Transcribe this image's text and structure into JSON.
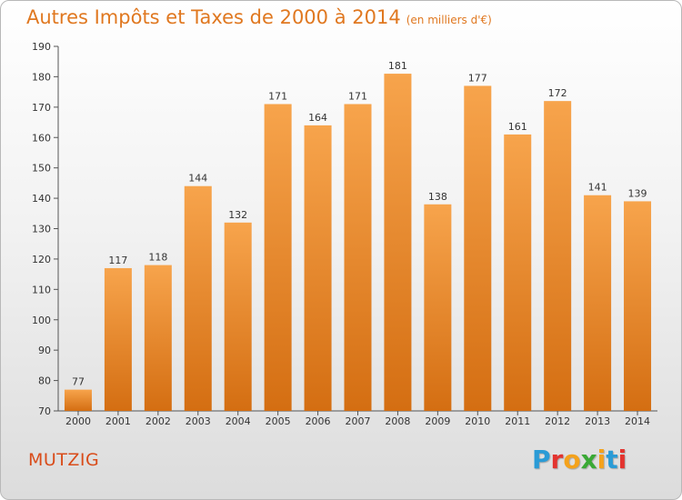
{
  "header": {
    "title": "Autres Impôts et Taxes de 2000 à 2014",
    "subtitle": "(en milliers d'€)"
  },
  "footer": {
    "town": "MUTZIG",
    "logo_letters": [
      "P",
      "r",
      "o",
      "x",
      "i",
      "t",
      "i"
    ]
  },
  "colors": {
    "title": "#e07820",
    "bar_top": "#f7a44c",
    "bar_bottom": "#d46e12",
    "town": "#d94c1a",
    "logo": [
      "#2a9bd6",
      "#e3342f",
      "#f4a21c",
      "#3aa935",
      "#f4a21c",
      "#2a9bd6",
      "#e3342f"
    ]
  },
  "chart_data": {
    "type": "bar",
    "title": "Autres Impôts et Taxes de 2000 à 2014",
    "subtitle": "(en milliers d'€)",
    "categories": [
      "2000",
      "2001",
      "2002",
      "2003",
      "2004",
      "2005",
      "2006",
      "2007",
      "2008",
      "2009",
      "2010",
      "2011",
      "2012",
      "2013",
      "2014"
    ],
    "values": [
      77,
      117,
      118,
      144,
      132,
      171,
      164,
      171,
      181,
      138,
      177,
      161,
      172,
      141,
      139
    ],
    "ylim": [
      70,
      190
    ],
    "yticks": [
      70,
      80,
      90,
      100,
      110,
      120,
      130,
      140,
      150,
      160,
      170,
      180,
      190
    ],
    "grid": false,
    "legend": "none"
  }
}
